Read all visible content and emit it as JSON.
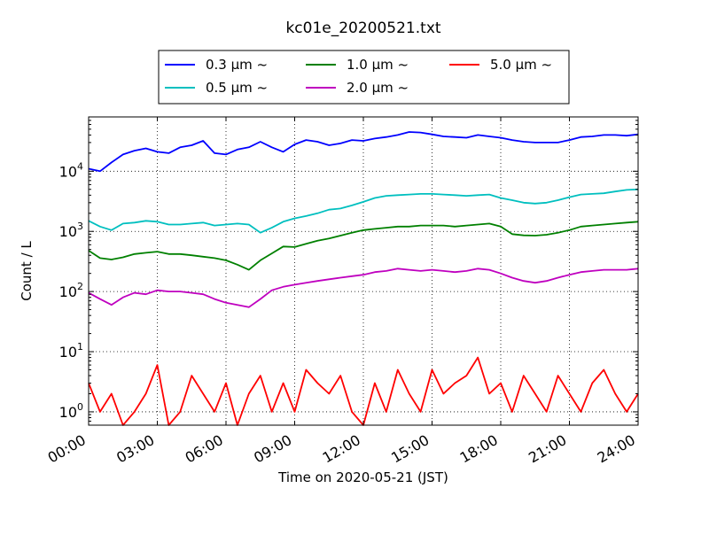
{
  "chart_data": {
    "type": "line",
    "title": "kc01e_20200521.txt",
    "xlabel": "Time on 2020-05-21 (JST)",
    "ylabel": "Count / L",
    "yscale": "log",
    "xlim": [
      "00:00",
      "24:00"
    ],
    "ylim": [
      0.6,
      80000
    ],
    "grid": true,
    "legend_position": "top-center",
    "x_ticks": [
      "00:00",
      "03:00",
      "06:00",
      "09:00",
      "12:00",
      "15:00",
      "18:00",
      "21:00",
      "24:00"
    ],
    "y_ticks": [
      {
        "value": 1,
        "base": "10",
        "exp": "0"
      },
      {
        "value": 10,
        "base": "10",
        "exp": "1"
      },
      {
        "value": 100,
        "base": "10",
        "exp": "2"
      },
      {
        "value": 1000,
        "base": "10",
        "exp": "3"
      },
      {
        "value": 10000,
        "base": "10",
        "exp": "4"
      }
    ],
    "series": [
      {
        "name": "0.3 μm ~",
        "color": "#0000ff",
        "x": [
          "00:00",
          "00:30",
          "01:00",
          "01:30",
          "02:00",
          "02:30",
          "03:00",
          "03:30",
          "04:00",
          "04:30",
          "05:00",
          "05:30",
          "06:00",
          "06:30",
          "07:00",
          "07:30",
          "08:00",
          "08:30",
          "09:00",
          "09:30",
          "10:00",
          "10:30",
          "11:00",
          "11:30",
          "12:00",
          "12:30",
          "13:00",
          "13:30",
          "14:00",
          "14:30",
          "15:00",
          "15:30",
          "16:00",
          "16:30",
          "17:00",
          "17:30",
          "18:00",
          "18:30",
          "19:00",
          "19:30",
          "20:00",
          "20:30",
          "21:00",
          "21:30",
          "22:00",
          "22:30",
          "23:00",
          "23:30",
          "24:00"
        ],
        "y": [
          11000,
          10000,
          14000,
          19000,
          22000,
          24000,
          21000,
          20000,
          25000,
          27000,
          32000,
          20000,
          19000,
          23000,
          25000,
          31000,
          25000,
          21000,
          28000,
          33000,
          31000,
          27000,
          29000,
          33000,
          32000,
          35000,
          37000,
          40000,
          45000,
          44000,
          41000,
          38000,
          37000,
          36000,
          40000,
          38000,
          36000,
          33000,
          31000,
          30000,
          30000,
          30000,
          33000,
          37000,
          38000,
          40000,
          40000,
          39000,
          41000
        ]
      },
      {
        "name": "0.5 μm ~",
        "color": "#00bfbf",
        "x": [
          "00:00",
          "00:30",
          "01:00",
          "01:30",
          "02:00",
          "02:30",
          "03:00",
          "03:30",
          "04:00",
          "04:30",
          "05:00",
          "05:30",
          "06:00",
          "06:30",
          "07:00",
          "07:30",
          "08:00",
          "08:30",
          "09:00",
          "09:30",
          "10:00",
          "10:30",
          "11:00",
          "11:30",
          "12:00",
          "12:30",
          "13:00",
          "13:30",
          "14:00",
          "14:30",
          "15:00",
          "15:30",
          "16:00",
          "16:30",
          "17:00",
          "17:30",
          "18:00",
          "18:30",
          "19:00",
          "19:30",
          "20:00",
          "20:30",
          "21:00",
          "21:30",
          "22:00",
          "22:30",
          "23:00",
          "23:30",
          "24:00"
        ],
        "y": [
          1500,
          1200,
          1050,
          1350,
          1400,
          1500,
          1450,
          1300,
          1300,
          1350,
          1400,
          1250,
          1300,
          1350,
          1300,
          950,
          1150,
          1450,
          1650,
          1800,
          2000,
          2300,
          2400,
          2700,
          3100,
          3600,
          3900,
          4000,
          4100,
          4200,
          4200,
          4100,
          4000,
          3900,
          4000,
          4100,
          3600,
          3300,
          3000,
          2900,
          3000,
          3300,
          3700,
          4100,
          4200,
          4300,
          4600,
          4900,
          5000
        ]
      },
      {
        "name": "1.0 μm ~",
        "color": "#008000",
        "x": [
          "00:00",
          "00:30",
          "01:00",
          "01:30",
          "02:00",
          "02:30",
          "03:00",
          "03:30",
          "04:00",
          "04:30",
          "05:00",
          "05:30",
          "06:00",
          "06:30",
          "07:00",
          "07:30",
          "08:00",
          "08:30",
          "09:00",
          "09:30",
          "10:00",
          "10:30",
          "11:00",
          "11:30",
          "12:00",
          "12:30",
          "13:00",
          "13:30",
          "14:00",
          "14:30",
          "15:00",
          "15:30",
          "16:00",
          "16:30",
          "17:00",
          "17:30",
          "18:00",
          "18:30",
          "19:00",
          "19:30",
          "20:00",
          "20:30",
          "21:00",
          "21:30",
          "22:00",
          "22:30",
          "23:00",
          "23:30",
          "24:00"
        ],
        "y": [
          480,
          360,
          340,
          370,
          420,
          440,
          460,
          420,
          420,
          400,
          380,
          360,
          330,
          280,
          230,
          330,
          430,
          560,
          550,
          620,
          700,
          760,
          850,
          950,
          1050,
          1100,
          1150,
          1200,
          1200,
          1250,
          1250,
          1250,
          1200,
          1250,
          1300,
          1350,
          1200,
          900,
          860,
          850,
          880,
          950,
          1050,
          1200,
          1250,
          1300,
          1350,
          1400,
          1450
        ]
      },
      {
        "name": "2.0 μm ~",
        "color": "#bf00bf",
        "x": [
          "00:00",
          "00:30",
          "01:00",
          "01:30",
          "02:00",
          "02:30",
          "03:00",
          "03:30",
          "04:00",
          "04:30",
          "05:00",
          "05:30",
          "06:00",
          "06:30",
          "07:00",
          "07:30",
          "08:00",
          "08:30",
          "09:00",
          "09:30",
          "10:00",
          "10:30",
          "11:00",
          "11:30",
          "12:00",
          "12:30",
          "13:00",
          "13:30",
          "14:00",
          "14:30",
          "15:00",
          "15:30",
          "16:00",
          "16:30",
          "17:00",
          "17:30",
          "18:00",
          "18:30",
          "19:00",
          "19:30",
          "20:00",
          "20:30",
          "21:00",
          "21:30",
          "22:00",
          "22:30",
          "23:00",
          "23:30",
          "24:00"
        ],
        "y": [
          95,
          75,
          60,
          80,
          95,
          90,
          105,
          100,
          100,
          95,
          90,
          75,
          65,
          60,
          55,
          75,
          105,
          120,
          130,
          140,
          150,
          160,
          170,
          180,
          190,
          210,
          220,
          240,
          230,
          220,
          230,
          220,
          210,
          220,
          240,
          230,
          200,
          170,
          150,
          140,
          150,
          170,
          190,
          210,
          220,
          230,
          230,
          230,
          240
        ]
      },
      {
        "name": "5.0 μm ~",
        "color": "#ff0000",
        "x": [
          "00:00",
          "00:30",
          "01:00",
          "01:30",
          "02:00",
          "02:30",
          "03:00",
          "03:30",
          "04:00",
          "04:30",
          "05:00",
          "05:30",
          "06:00",
          "06:30",
          "07:00",
          "07:30",
          "08:00",
          "08:30",
          "09:00",
          "09:30",
          "10:00",
          "10:30",
          "11:00",
          "11:30",
          "12:00",
          "12:30",
          "13:00",
          "13:30",
          "14:00",
          "14:30",
          "15:00",
          "15:30",
          "16:00",
          "16:30",
          "17:00",
          "17:30",
          "18:00",
          "18:30",
          "19:00",
          "19:30",
          "20:00",
          "20:30",
          "21:00",
          "21:30",
          "22:00",
          "22:30",
          "23:00",
          "23:30",
          "24:00"
        ],
        "y": [
          3,
          1,
          2,
          0.6,
          1,
          2,
          6,
          0.6,
          1,
          4,
          2,
          1,
          3,
          0.6,
          2,
          4,
          1,
          3,
          1,
          5,
          3,
          2,
          4,
          1,
          0.6,
          3,
          1,
          5,
          2,
          1,
          5,
          2,
          3,
          4,
          8,
          2,
          3,
          1,
          4,
          2,
          1,
          4,
          2,
          1,
          3,
          5,
          2,
          1,
          2
        ]
      }
    ]
  }
}
